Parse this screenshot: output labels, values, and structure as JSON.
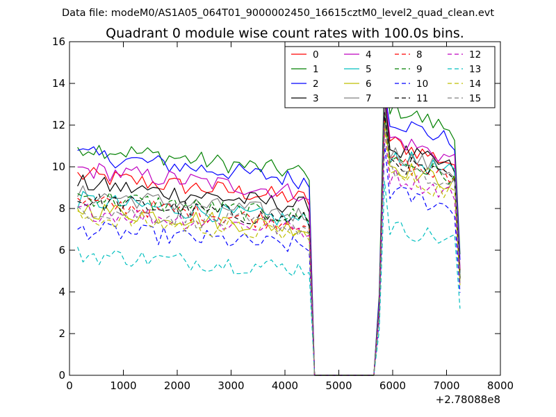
{
  "chart_data": {
    "type": "line",
    "suptitle": "Data file: modeM0/AS1A05_064T01_9000002450_16615cztM0_level2_quad_clean.evt",
    "title": "Quadrant 0 module wise count rates with 100.0s bins.",
    "xlabel": "",
    "ylabel": "",
    "xlim": [
      0,
      8000
    ],
    "ylim": [
      0,
      16
    ],
    "x_offset_label": "+2.78088e8",
    "x_ticks": [
      0,
      1000,
      2000,
      3000,
      4000,
      5000,
      6000,
      7000,
      8000
    ],
    "y_ticks": [
      0,
      2,
      4,
      6,
      8,
      10,
      12,
      14,
      16
    ],
    "x_tick_labels": [
      "0",
      "1000",
      "2000",
      "3000",
      "4000",
      "5000",
      "6000",
      "7000",
      "8000"
    ],
    "y_tick_labels": [
      "0",
      "2",
      "4",
      "6",
      "8",
      "10",
      "12",
      "14",
      "16"
    ],
    "grid": false,
    "legend_location": "top-right",
    "x_segments": [
      {
        "start": 150,
        "end": 4450,
        "step": 100
      },
      {
        "start": 4550,
        "end": 5650,
        "step": 100
      },
      {
        "start": 5750,
        "end": 7250,
        "step": 100
      }
    ],
    "series": [
      {
        "name": "0",
        "color": "#ff0000",
        "dash": "solid",
        "level1": 9.6,
        "level2": 11.2,
        "peak": 13.3
      },
      {
        "name": "1",
        "color": "#008000",
        "dash": "solid",
        "level1": 11.0,
        "level2": 12.9,
        "peak": 14.9
      },
      {
        "name": "2",
        "color": "#0000ff",
        "dash": "solid",
        "level1": 10.6,
        "level2": 12.3,
        "peak": 13.7
      },
      {
        "name": "3",
        "color": "#000000",
        "dash": "solid",
        "level1": 9.2,
        "level2": 10.9,
        "peak": 13.4
      },
      {
        "name": "4",
        "color": "#bf00bf",
        "dash": "solid",
        "level1": 9.9,
        "level2": 11.4,
        "peak": 13.6
      },
      {
        "name": "5",
        "color": "#00bfbf",
        "dash": "solid",
        "level1": 8.4,
        "level2": 10.6,
        "peak": 12.6
      },
      {
        "name": "6",
        "color": "#bfbf00",
        "dash": "solid",
        "level1": 8.0,
        "level2": 10.1,
        "peak": 12.3
      },
      {
        "name": "7",
        "color": "#808080",
        "dash": "solid",
        "level1": 8.7,
        "level2": 10.7,
        "peak": 12.9
      },
      {
        "name": "8",
        "color": "#ff0000",
        "dash": "dashed",
        "level1": 8.3,
        "level2": 10.3,
        "peak": 12.5
      },
      {
        "name": "9",
        "color": "#008000",
        "dash": "dashed",
        "level1": 8.6,
        "level2": 10.4,
        "peak": 12.6
      },
      {
        "name": "10",
        "color": "#0000ff",
        "dash": "dashed",
        "level1": 7.0,
        "level2": 8.8,
        "peak": 11.1
      },
      {
        "name": "11",
        "color": "#000000",
        "dash": "dashed",
        "level1": 8.4,
        "level2": 10.3,
        "peak": 12.6
      },
      {
        "name": "12",
        "color": "#bf00bf",
        "dash": "dashed",
        "level1": 7.9,
        "level2": 9.6,
        "peak": 11.8
      },
      {
        "name": "13",
        "color": "#00bfbf",
        "dash": "dashed",
        "level1": 5.8,
        "level2": 7.1,
        "peak": 9.3
      },
      {
        "name": "14",
        "color": "#bfbf00",
        "dash": "dashed",
        "level1": 7.6,
        "level2": 9.6,
        "peak": 11.9
      },
      {
        "name": "15",
        "color": "#808080",
        "dash": "dashed",
        "level1": 8.0,
        "level2": 9.9,
        "peak": 12.1
      }
    ]
  }
}
